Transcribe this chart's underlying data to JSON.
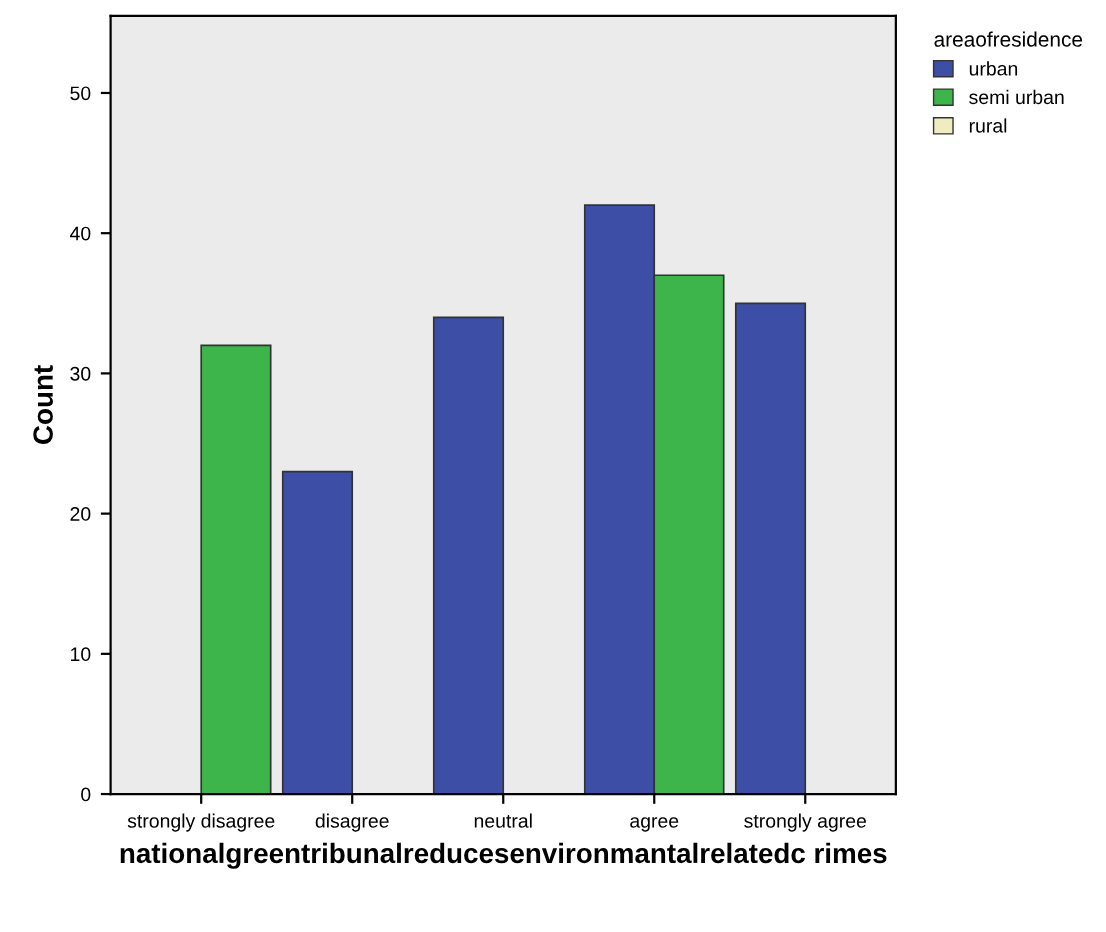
{
  "chart_data": {
    "type": "bar",
    "ylabel": "Count",
    "xlabel": "nationalgreentribunalreducesenvironmantalrelatedc rimes",
    "legend_title": "areaofresidence",
    "categories": [
      "strongly disagree",
      "disagree",
      "neutral",
      "agree",
      "strongly agree"
    ],
    "series": [
      {
        "name": "urban",
        "color": "#3d4ea6",
        "values": [
          null,
          23,
          34,
          42,
          35
        ]
      },
      {
        "name": "semi urban",
        "color": "#3db54a",
        "values": [
          32,
          null,
          null,
          37,
          null
        ]
      },
      {
        "name": "rural",
        "color": "#f0ecc2",
        "values": [
          null,
          null,
          null,
          null,
          null
        ]
      }
    ],
    "ylim": [
      0,
      55.5
    ],
    "yticks": [
      0,
      10,
      20,
      30,
      40,
      50
    ],
    "grid": false,
    "legend": "top right"
  }
}
